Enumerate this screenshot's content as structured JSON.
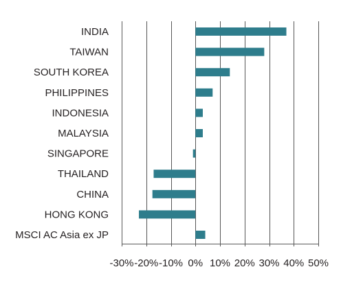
{
  "chart_data": {
    "type": "bar",
    "orientation": "horizontal",
    "title": "",
    "xlabel": "",
    "ylabel": "",
    "categories": [
      "INDIA",
      "TAIWAN",
      "SOUTH KOREA",
      "PHILIPPINES",
      "INDONESIA",
      "MALAYSIA",
      "SINGAPORE",
      "THAILAND",
      "CHINA",
      "HONG KONG",
      "MSCI AC Asia ex JP"
    ],
    "values": [
      37,
      28,
      14,
      7,
      3,
      3,
      -1,
      -17,
      -17.5,
      -23,
      4
    ],
    "xlim": [
      -30,
      50
    ],
    "xticks": [
      -30,
      -20,
      -10,
      0,
      10,
      20,
      30,
      40,
      50
    ],
    "xtick_labels": [
      "-30%",
      "-20%",
      "-10%",
      "0%",
      "10%",
      "20%",
      "30%",
      "40%",
      "50%"
    ],
    "grid": "vertical",
    "legend": "none",
    "colors": {
      "bar": "#2e7d8c",
      "grid": "#555555",
      "text": "#231f20"
    }
  }
}
